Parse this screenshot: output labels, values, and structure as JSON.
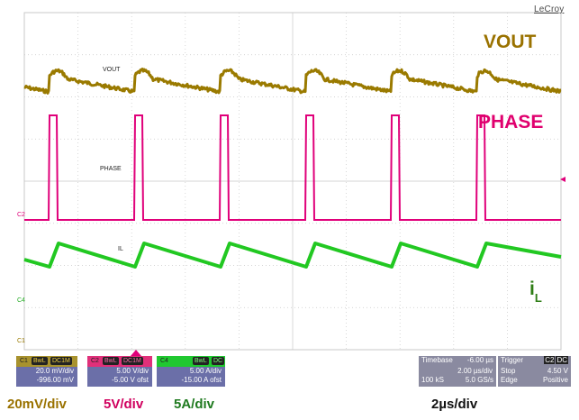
{
  "brand": "LeCroy",
  "labels": {
    "vout": "VOUT",
    "phase": "PHASE",
    "il_main": "i",
    "il_sub": "L"
  },
  "trace_labels": {
    "vout": "VOUT",
    "phase": "PHASE",
    "il": "IL"
  },
  "channel_markers": {
    "c2": "C2",
    "c4": "C4",
    "c1": "C1"
  },
  "channels": [
    {
      "id": "C1",
      "coupling": "BwL",
      "input": "DC1M",
      "scale": "20.0 mV/div",
      "offset": "-996.00 mV"
    },
    {
      "id": "C2",
      "coupling": "BwL",
      "input": "DC1M",
      "scale": "5.00 V/div",
      "offset": "-5.00 V ofst"
    },
    {
      "id": "C4",
      "coupling": "BwL",
      "input": "DC",
      "scale": "5.00 A/div",
      "offset": "-15.00 A ofst"
    }
  ],
  "timebase": {
    "label": "Timebase",
    "delay": "-6.00 µs",
    "per_div": "2.00 µs/div",
    "samples": "100 kS",
    "rate": "5.0 GS/s"
  },
  "trigger": {
    "label": "Trigger",
    "channel": "C2",
    "coupling": "DC",
    "mode": "Stop",
    "level": "4.50 V",
    "type": "Edge",
    "slope": "Positive"
  },
  "scale_labels": {
    "vout": "20mV/div",
    "phase": "5V/div",
    "il": "5A/div",
    "time": "2µs/div"
  },
  "colors": {
    "vout": "#9a7a00",
    "phase": "#e0007a",
    "il": "#22c822",
    "grid": "#c8c8c8"
  }
}
